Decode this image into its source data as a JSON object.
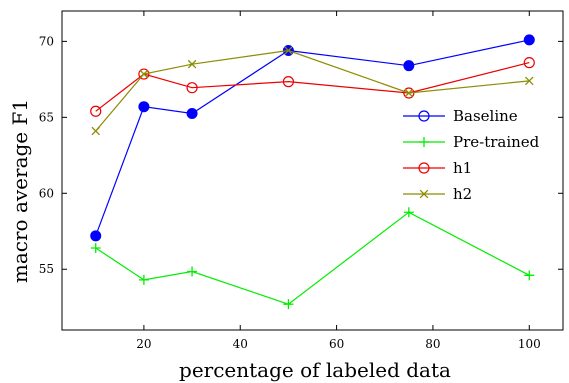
{
  "chart_data": {
    "type": "line",
    "xlabel": "percentage of labeled data",
    "ylabel": "macro average F1",
    "xlim": [
      3,
      107
    ],
    "ylim": [
      51,
      72
    ],
    "xticks": [
      20,
      40,
      60,
      80,
      100
    ],
    "yticks": [
      55,
      60,
      65,
      70
    ],
    "grid": false,
    "legend_position": "center-right",
    "series": [
      {
        "name": "Baseline",
        "color": "#0000ff",
        "marker": "circle-filled",
        "x": [
          10,
          20,
          30,
          50,
          75,
          100
        ],
        "y": [
          57.2,
          65.7,
          65.25,
          69.4,
          68.4,
          70.1
        ]
      },
      {
        "name": "Pre-trained",
        "color": "#00ee00",
        "marker": "plus",
        "x": [
          10,
          20,
          30,
          50,
          75,
          100
        ],
        "y": [
          56.4,
          54.3,
          54.85,
          52.7,
          58.75,
          54.6
        ]
      },
      {
        "name": "h1",
        "color": "#ee0000",
        "marker": "circle-open",
        "x": [
          10,
          20,
          30,
          50,
          75,
          100
        ],
        "y": [
          65.4,
          67.85,
          66.95,
          67.35,
          66.6,
          68.6
        ]
      },
      {
        "name": "h2",
        "color": "#8c8c00",
        "marker": "x",
        "x": [
          10,
          20,
          30,
          50,
          75,
          100
        ],
        "y": [
          64.1,
          67.85,
          68.5,
          69.4,
          66.6,
          67.4
        ]
      }
    ]
  }
}
